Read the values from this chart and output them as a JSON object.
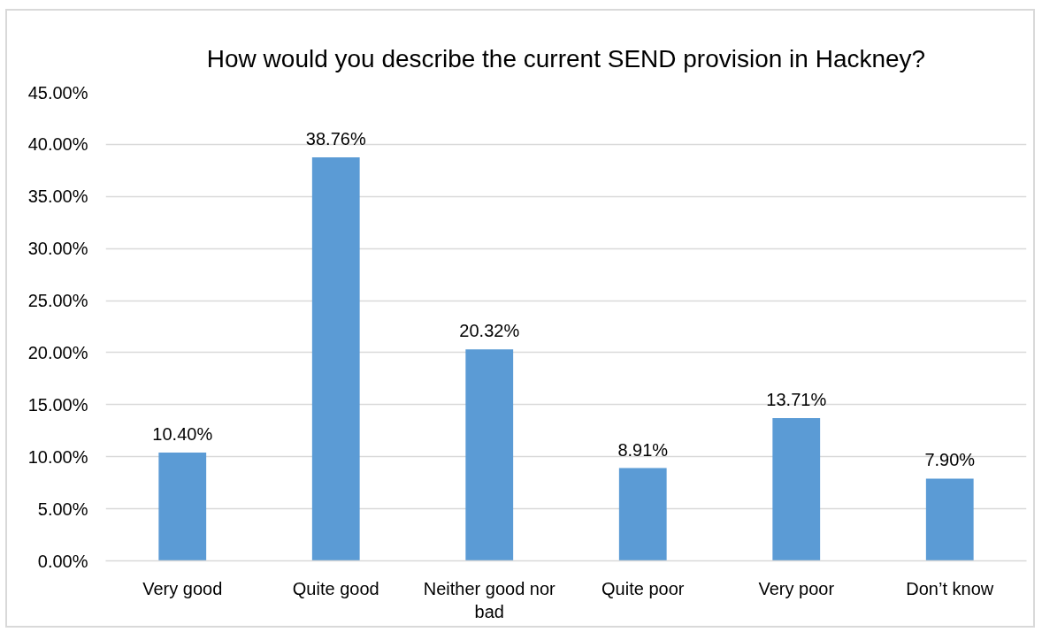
{
  "chart_data": {
    "type": "bar",
    "title": "How would you describe the current SEND provision in Hackney?",
    "categories": [
      "Very good",
      "Quite good",
      "Neither good nor bad",
      "Quite poor",
      "Very poor",
      "Don’t know"
    ],
    "values": [
      10.4,
      38.76,
      20.32,
      8.91,
      13.71,
      7.9
    ],
    "value_labels": [
      "10.40%",
      "38.76%",
      "20.32%",
      "8.91%",
      "13.71%",
      "7.90%"
    ],
    "color": "#5b9bd5",
    "ylim": [
      0,
      45
    ],
    "yticks": [
      {
        "value": 0,
        "label": "0.00%"
      },
      {
        "value": 5,
        "label": "5.00%"
      },
      {
        "value": 10,
        "label": "10.00%"
      },
      {
        "value": 15,
        "label": "15.00%"
      },
      {
        "value": 20,
        "label": "20.00%"
      },
      {
        "value": 25,
        "label": "25.00%"
      },
      {
        "value": 30,
        "label": "30.00%"
      },
      {
        "value": 35,
        "label": "35.00%"
      },
      {
        "value": 40,
        "label": "40.00%"
      },
      {
        "value": 45,
        "label": "45.00%"
      }
    ],
    "grid": "y"
  }
}
